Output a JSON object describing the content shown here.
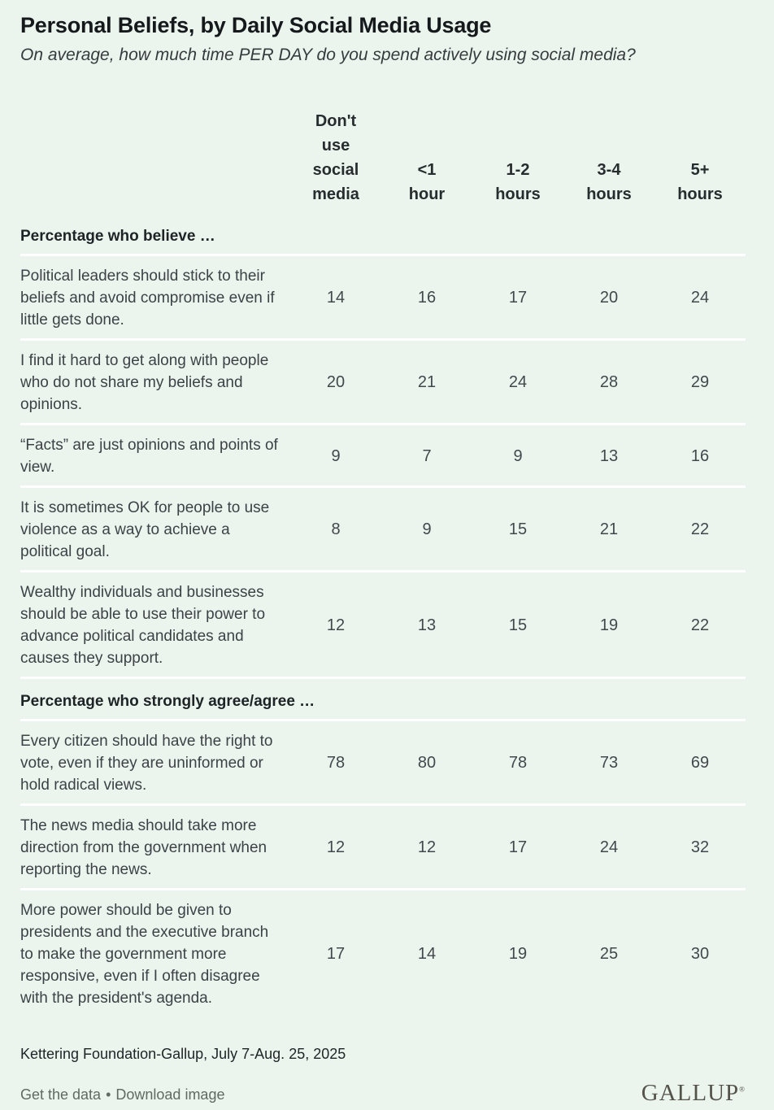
{
  "chart_data": {
    "type": "table",
    "title": "Personal Beliefs, by Daily Social Media Usage",
    "subtitle": "On average, how much time PER DAY do you spend actively using social media?",
    "columns": [
      "Don't use social media",
      "<1 hour",
      "1-2 hours",
      "3-4 hours",
      "5+ hours"
    ],
    "sections": [
      {
        "header": "Percentage who believe …",
        "rows": [
          {
            "label": "Political leaders should stick to their beliefs and avoid compromise even if little gets done.",
            "values": [
              14,
              16,
              17,
              20,
              24
            ]
          },
          {
            "label": "I find it hard to get along with people who do not share my beliefs and opinions.",
            "values": [
              20,
              21,
              24,
              28,
              29
            ]
          },
          {
            "label": "“Facts” are just opinions and points of view.",
            "values": [
              9,
              7,
              9,
              13,
              16
            ]
          },
          {
            "label": "It is sometimes OK for people to use violence as a way to achieve a political goal.",
            "values": [
              8,
              9,
              15,
              21,
              22
            ]
          },
          {
            "label": "Wealthy individuals and businesses should be able to use their power to advance political candidates and causes they support.",
            "values": [
              12,
              13,
              15,
              19,
              22
            ]
          }
        ]
      },
      {
        "header": "Percentage who strongly agree/agree …",
        "rows": [
          {
            "label": "Every citizen should have the right to vote, even if they are uninformed or hold radical views.",
            "values": [
              78,
              80,
              78,
              73,
              69
            ]
          },
          {
            "label": "The news media should take more direction from the government when reporting the news.",
            "values": [
              12,
              12,
              17,
              24,
              32
            ]
          },
          {
            "label": "More power should be given to presidents and the executive branch to make the government more responsive, even if I often disagree with the president's agenda.",
            "values": [
              17,
              14,
              19,
              25,
              30
            ]
          }
        ]
      }
    ],
    "source": "Kettering Foundation-Gallup, July 7-Aug. 25, 2025"
  },
  "footer": {
    "links": [
      "Get the data",
      "Download image"
    ],
    "separator": "•",
    "logo_text": "GALLUP",
    "logo_mark": "®"
  },
  "colors": {
    "background": "#ecf4ee",
    "divider": "#ffffff",
    "title_text": "#15191b",
    "body_text": "#3d4246",
    "footer_link": "#5f6a63",
    "logo": "#53534a"
  }
}
